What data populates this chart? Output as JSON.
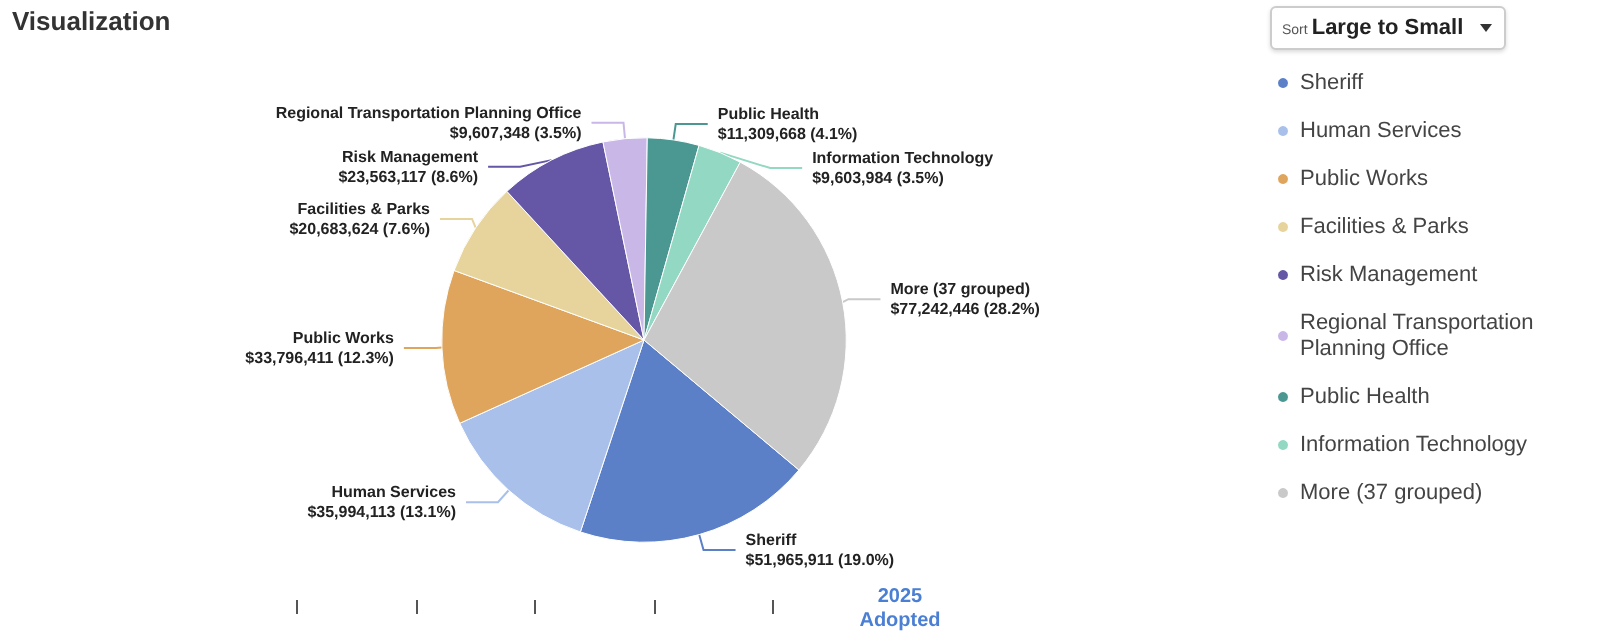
{
  "chart_data": {
    "type": "pie",
    "title": "Visualization",
    "categories": [
      "Sheriff",
      "Human Services",
      "Public Works",
      "Facilities & Parks",
      "Risk Management",
      "Regional Transportation Planning Office",
      "Public Health",
      "Information Technology",
      "More (37 grouped)"
    ],
    "values": [
      51965911,
      35994113,
      33796411,
      20683624,
      23563117,
      9607348,
      11309668,
      9603984,
      77242446
    ],
    "value_labels": [
      "$51,965,911 (19.0%)",
      "$35,994,113 (13.1%)",
      "$33,796,411 (12.3%)",
      "$20,683,624 (7.6%)",
      "$23,563,117 (8.6%)",
      "$9,607,348 (3.5%)",
      "$11,309,668 (4.1%)",
      "$9,603,984 (3.5%)",
      "$77,242,446 (28.2%)"
    ],
    "colors": [
      "#5b80c8",
      "#a9c0ea",
      "#e0a55c",
      "#e6d49c",
      "#6657a6",
      "#c9b7e8",
      "#4b9893",
      "#92d8c2",
      "#c9c9c9"
    ],
    "legend": "right",
    "annotations": [
      "Sort",
      "Large to Small",
      "2025",
      "Adopted"
    ]
  }
}
